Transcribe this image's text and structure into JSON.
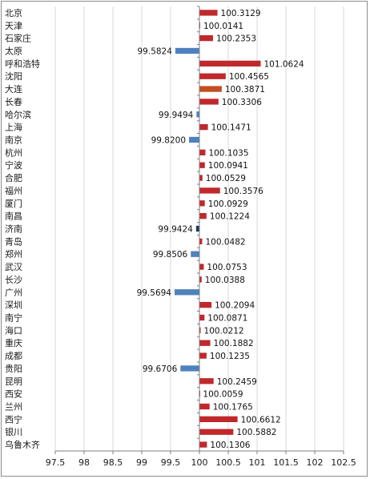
{
  "chart_data": {
    "type": "bar",
    "orientation": "horizontal",
    "baseline": 100,
    "xlim": [
      97.5,
      102.5
    ],
    "xticks": [
      "97.5",
      "98",
      "98.5",
      "99",
      "99.5",
      "100",
      "100.5",
      "101",
      "101.5",
      "102",
      "102.5"
    ],
    "grid": true,
    "colors": {
      "above": "#c0282c",
      "below": "#4f81bd",
      "dalian": "#c24f1e",
      "jinan": "#1f3a5f"
    },
    "categories": [
      "北京",
      "天津",
      "石家庄",
      "太原",
      "呼和浩特",
      "沈阳",
      "大连",
      "长春",
      "哈尔滨",
      "上海",
      "南京",
      "杭州",
      "宁波",
      "合肥",
      "福州",
      "厦门",
      "南昌",
      "济南",
      "青岛",
      "郑州",
      "武汉",
      "长沙",
      "广州",
      "深圳",
      "南宁",
      "海口",
      "重庆",
      "成都",
      "贵阳",
      "昆明",
      "西安",
      "兰州",
      "西宁",
      "银川",
      "乌鲁木齐"
    ],
    "values": [
      100.3129,
      100.0141,
      100.2353,
      99.5824,
      101.0624,
      100.4565,
      100.3871,
      100.3306,
      99.9494,
      100.1471,
      99.82,
      100.1035,
      100.0941,
      100.0529,
      100.3576,
      100.0929,
      100.1224,
      99.9424,
      100.0482,
      99.8506,
      100.0753,
      100.0388,
      99.5694,
      100.2094,
      100.0871,
      100.0212,
      100.1882,
      100.1235,
      99.6706,
      100.2459,
      100.0059,
      100.1765,
      100.6612,
      100.5882,
      100.1306
    ],
    "data_labels": [
      "100.3129",
      "100.0141",
      "100.2353",
      "99.5824",
      "101.0624",
      "100.4565",
      "100.3871",
      "100.3306",
      "99.9494",
      "100.1471",
      "99.8200",
      "100.1035",
      "100.0941",
      "100.0529",
      "100.3576",
      "100.0929",
      "100.1224",
      "99.9424",
      "100.0482",
      "99.8506",
      "100.0753",
      "100.0388",
      "99.5694",
      "100.2094",
      "100.0871",
      "100.0212",
      "100.1882",
      "100.1235",
      "99.6706",
      "100.2459",
      "100.0059",
      "100.1765",
      "100.6612",
      "100.5882",
      "100.1306"
    ]
  }
}
